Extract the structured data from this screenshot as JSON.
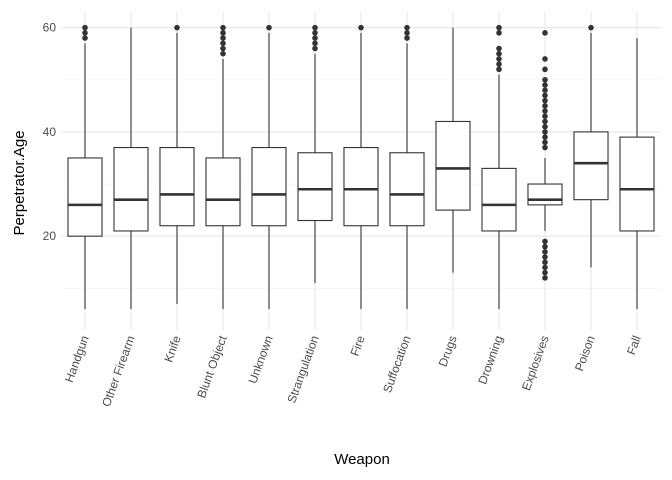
{
  "chart_data": {
    "type": "boxplot",
    "xlabel": "Weapon",
    "ylabel": "Perpetrator.Age",
    "ylim": [
      2,
      63
    ],
    "yticks": [
      20,
      40,
      60
    ],
    "grid": true,
    "colors": {
      "box_fill": "#ffffff",
      "box_stroke": "#333333",
      "grid_major": "#e6e6e6",
      "grid_minor": "#f2f2f2"
    },
    "categories": [
      "Handgun",
      "Other Firearm",
      "Knife",
      "Blunt Object",
      "Unknown",
      "Strangulation",
      "Fire",
      "Suffocation",
      "Drugs",
      "Drowning",
      "Explosives",
      "Poison",
      "Fall"
    ],
    "boxes": [
      {
        "q1": 20,
        "median": 26,
        "q3": 35,
        "whisker_low": 6,
        "whisker_high": 57,
        "outliers": [
          58,
          59,
          60
        ]
      },
      {
        "q1": 21,
        "median": 27,
        "q3": 37,
        "whisker_low": 6,
        "whisker_high": 60,
        "outliers": []
      },
      {
        "q1": 22,
        "median": 28,
        "q3": 37,
        "whisker_low": 7,
        "whisker_high": 59,
        "outliers": [
          60
        ]
      },
      {
        "q1": 22,
        "median": 27,
        "q3": 35,
        "whisker_low": 6,
        "whisker_high": 54,
        "outliers": [
          55,
          56,
          57,
          58,
          59,
          60
        ]
      },
      {
        "q1": 22,
        "median": 28,
        "q3": 37,
        "whisker_low": 6,
        "whisker_high": 59,
        "outliers": [
          60
        ]
      },
      {
        "q1": 23,
        "median": 29,
        "q3": 36,
        "whisker_low": 11,
        "whisker_high": 55,
        "outliers": [
          56,
          57,
          58,
          59,
          60
        ]
      },
      {
        "q1": 22,
        "median": 29,
        "q3": 37,
        "whisker_low": 6,
        "whisker_high": 59,
        "outliers": [
          60
        ]
      },
      {
        "q1": 22,
        "median": 28,
        "q3": 36,
        "whisker_low": 6,
        "whisker_high": 57,
        "outliers": [
          58,
          59,
          60
        ]
      },
      {
        "q1": 25,
        "median": 33,
        "q3": 42,
        "whisker_low": 13,
        "whisker_high": 60,
        "outliers": []
      },
      {
        "q1": 21,
        "median": 26,
        "q3": 33,
        "whisker_low": 6,
        "whisker_high": 51,
        "outliers": [
          52,
          53,
          54,
          55,
          56,
          59,
          60
        ]
      },
      {
        "q1": 26,
        "median": 27,
        "q3": 30,
        "whisker_low": 21,
        "whisker_high": 35,
        "outliers": [
          12,
          13,
          14,
          15,
          16,
          17,
          18,
          19,
          37,
          38,
          39,
          40,
          41,
          42,
          43,
          44,
          45,
          46,
          47,
          48,
          49,
          50,
          52,
          54,
          59
        ]
      },
      {
        "q1": 27,
        "median": 34,
        "q3": 40,
        "whisker_low": 14,
        "whisker_high": 59,
        "outliers": [
          60
        ]
      },
      {
        "q1": 21,
        "median": 29,
        "q3": 39,
        "whisker_low": 6,
        "whisker_high": 58,
        "outliers": []
      }
    ]
  }
}
